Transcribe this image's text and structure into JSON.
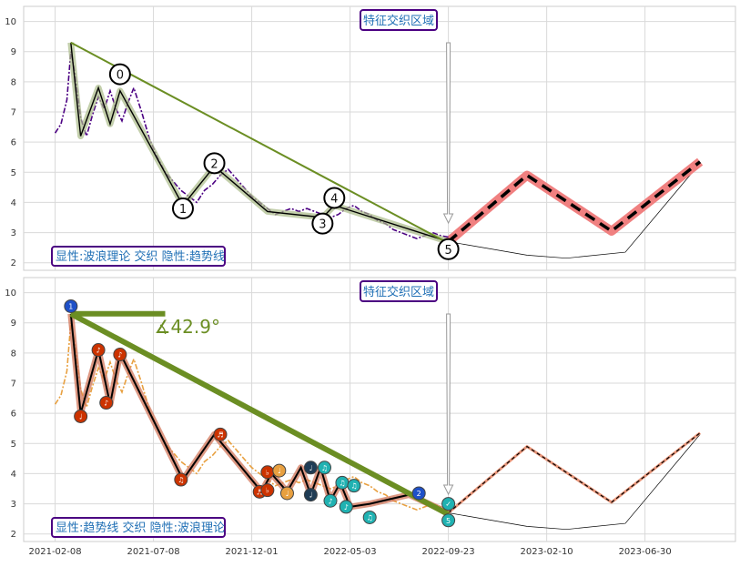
{
  "chart_data": [
    {
      "type": "line",
      "panel": "top",
      "ylim": [
        1.75,
        10.5
      ],
      "yticks": [
        "2",
        "3",
        "4",
        "5",
        "6",
        "7",
        "8",
        "9",
        "10"
      ],
      "grid": true,
      "annotation_top": "特征交织区域",
      "legend_text": "显性:波浪理论 交织 隐性:趋势线",
      "price_color": "#4b0082",
      "price_series": [
        [
          0,
          6.3
        ],
        [
          3,
          6.6
        ],
        [
          6,
          7.4
        ],
        [
          8,
          9.0
        ],
        [
          10,
          8.3
        ],
        [
          13,
          6.8
        ],
        [
          16,
          6.2
        ],
        [
          19,
          6.9
        ],
        [
          22,
          7.5
        ],
        [
          25,
          7.1
        ],
        [
          28,
          7.7
        ],
        [
          31,
          7.1
        ],
        [
          34,
          6.7
        ],
        [
          37,
          7.3
        ],
        [
          40,
          7.8
        ],
        [
          44,
          7.0
        ],
        [
          48,
          6.1
        ],
        [
          52,
          5.5
        ],
        [
          56,
          5.0
        ],
        [
          60,
          4.7
        ],
        [
          64,
          4.4
        ],
        [
          68,
          4.2
        ],
        [
          72,
          4.0
        ],
        [
          76,
          4.4
        ],
        [
          80,
          4.6
        ],
        [
          84,
          4.9
        ],
        [
          88,
          5.1
        ],
        [
          92,
          4.8
        ],
        [
          96,
          4.5
        ],
        [
          100,
          4.2
        ],
        [
          104,
          4.0
        ],
        [
          108,
          3.8
        ],
        [
          112,
          3.6
        ],
        [
          116,
          3.7
        ],
        [
          120,
          3.8
        ],
        [
          124,
          3.7
        ],
        [
          128,
          3.8
        ],
        [
          132,
          3.7
        ],
        [
          136,
          3.6
        ],
        [
          140,
          3.5
        ],
        [
          144,
          3.6
        ],
        [
          148,
          3.8
        ],
        [
          152,
          3.9
        ],
        [
          156,
          3.7
        ],
        [
          160,
          3.6
        ],
        [
          164,
          3.4
        ],
        [
          168,
          3.3
        ],
        [
          172,
          3.1
        ],
        [
          176,
          3.0
        ],
        [
          180,
          2.9
        ],
        [
          184,
          2.8
        ],
        [
          188,
          2.9
        ],
        [
          192,
          3.0
        ],
        [
          196,
          2.9
        ],
        [
          200,
          2.85
        ]
      ],
      "wave_points": [
        [
          8,
          9.3
        ],
        [
          13,
          6.2
        ],
        [
          22,
          7.8
        ],
        [
          28,
          6.6
        ],
        [
          33,
          7.7
        ],
        [
          65,
          3.9
        ],
        [
          81,
          5.2
        ],
        [
          108,
          3.7
        ],
        [
          136,
          3.5
        ],
        [
          142,
          3.9
        ],
        [
          200,
          2.7
        ]
      ],
      "wave_labels": [
        {
          "text": "0",
          "x": 33,
          "y": 8.25
        },
        {
          "text": "1",
          "x": 65,
          "y": 3.8
        },
        {
          "text": "2",
          "x": 81,
          "y": 5.3
        },
        {
          "text": "3",
          "x": 136,
          "y": 3.3
        },
        {
          "text": "4",
          "x": 142,
          "y": 4.15
        },
        {
          "text": "5",
          "x": 200,
          "y": 2.45
        }
      ],
      "trend_line": [
        [
          8,
          9.3
        ],
        [
          200,
          2.65
        ]
      ],
      "projection": [
        [
          200,
          2.7
        ],
        [
          240,
          4.9
        ],
        [
          283,
          3.05
        ],
        [
          328,
          5.35
        ]
      ],
      "projection_curve": [
        [
          200,
          2.7
        ],
        [
          240,
          2.25
        ],
        [
          260,
          2.15
        ],
        [
          290,
          2.35
        ],
        [
          328,
          5.3
        ]
      ]
    },
    {
      "type": "line",
      "panel": "bottom",
      "ylim": [
        1.75,
        10.5
      ],
      "yticks": [
        "2",
        "3",
        "4",
        "5",
        "6",
        "7",
        "8",
        "9",
        "10"
      ],
      "grid": true,
      "annotation_top": "特征交织区域",
      "legend_text": "显性:趋势线 交织 隐性:波浪理论",
      "angle_label": "∡42.9°",
      "price_color": "#e8a040",
      "price_series": [
        [
          0,
          6.3
        ],
        [
          3,
          6.6
        ],
        [
          6,
          7.4
        ],
        [
          8,
          9.0
        ],
        [
          10,
          8.3
        ],
        [
          13,
          6.8
        ],
        [
          16,
          6.2
        ],
        [
          19,
          6.9
        ],
        [
          22,
          7.5
        ],
        [
          25,
          7.1
        ],
        [
          28,
          7.7
        ],
        [
          31,
          7.1
        ],
        [
          34,
          6.7
        ],
        [
          37,
          7.3
        ],
        [
          40,
          7.8
        ],
        [
          44,
          7.0
        ],
        [
          48,
          6.1
        ],
        [
          52,
          5.5
        ],
        [
          56,
          5.0
        ],
        [
          60,
          4.7
        ],
        [
          64,
          4.4
        ],
        [
          68,
          4.2
        ],
        [
          72,
          4.0
        ],
        [
          76,
          4.4
        ],
        [
          80,
          4.6
        ],
        [
          84,
          4.9
        ],
        [
          88,
          5.1
        ],
        [
          92,
          4.8
        ],
        [
          96,
          4.5
        ],
        [
          100,
          4.2
        ],
        [
          104,
          4.0
        ],
        [
          108,
          3.8
        ],
        [
          112,
          3.6
        ],
        [
          116,
          3.7
        ],
        [
          120,
          3.8
        ],
        [
          124,
          3.7
        ],
        [
          128,
          3.8
        ],
        [
          132,
          3.7
        ],
        [
          136,
          3.6
        ],
        [
          140,
          3.5
        ],
        [
          144,
          3.6
        ],
        [
          148,
          3.8
        ],
        [
          152,
          3.9
        ],
        [
          156,
          3.7
        ],
        [
          160,
          3.6
        ],
        [
          164,
          3.4
        ],
        [
          168,
          3.3
        ],
        [
          172,
          3.1
        ],
        [
          176,
          3.0
        ],
        [
          180,
          2.9
        ],
        [
          184,
          2.8
        ],
        [
          188,
          2.9
        ],
        [
          192,
          3.0
        ],
        [
          196,
          2.9
        ],
        [
          200,
          2.85
        ]
      ],
      "wave_points": [
        [
          8,
          9.3
        ],
        [
          13,
          6.0
        ],
        [
          22,
          8.1
        ],
        [
          28,
          6.3
        ],
        [
          33,
          8.0
        ],
        [
          65,
          3.8
        ],
        [
          81,
          5.3
        ],
        [
          105,
          3.4
        ],
        [
          110,
          4.0
        ],
        [
          118,
          3.4
        ],
        [
          125,
          4.2
        ],
        [
          130,
          3.3
        ],
        [
          135,
          4.2
        ],
        [
          140,
          3.1
        ],
        [
          145,
          3.7
        ],
        [
          150,
          2.9
        ],
        [
          160,
          3.0
        ],
        [
          180,
          3.3
        ],
        [
          200,
          2.7
        ]
      ],
      "markers": [
        {
          "x": 8,
          "y": 9.55,
          "c": "#1e50c8",
          "t": "1"
        },
        {
          "x": 13,
          "y": 5.9,
          "c": "#cc3300",
          "t": "♩"
        },
        {
          "x": 22,
          "y": 8.1,
          "c": "#cc3300",
          "t": "♪"
        },
        {
          "x": 26,
          "y": 6.35,
          "c": "#cc3300",
          "t": "♪"
        },
        {
          "x": 33,
          "y": 7.95,
          "c": "#cc3300",
          "t": "♪"
        },
        {
          "x": 64,
          "y": 3.8,
          "c": "#cc3300",
          "t": "♫"
        },
        {
          "x": 84,
          "y": 5.3,
          "c": "#cc3300",
          "t": "♬"
        },
        {
          "x": 104,
          "y": 3.4,
          "c": "#cc3300",
          "t": "♬"
        },
        {
          "x": 108,
          "y": 4.05,
          "c": "#cc3300",
          "t": "♭"
        },
        {
          "x": 108,
          "y": 3.45,
          "c": "#cc3300",
          "t": "♭"
        },
        {
          "x": 114,
          "y": 4.1,
          "c": "#e8a040",
          "t": "♩"
        },
        {
          "x": 118,
          "y": 3.35,
          "c": "#e8a040",
          "t": "♩"
        },
        {
          "x": 130,
          "y": 4.2,
          "c": "#1f3c55",
          "t": "♩"
        },
        {
          "x": 130,
          "y": 3.3,
          "c": "#1f3c55",
          "t": "♩"
        },
        {
          "x": 137,
          "y": 4.2,
          "c": "#20b2b2",
          "t": "♫"
        },
        {
          "x": 140,
          "y": 3.1,
          "c": "#20b2b2",
          "t": "♪"
        },
        {
          "x": 146,
          "y": 3.7,
          "c": "#20b2b2",
          "t": "♫"
        },
        {
          "x": 148,
          "y": 2.9,
          "c": "#20b2b2",
          "t": "♪"
        },
        {
          "x": 152,
          "y": 3.6,
          "c": "#20b2b2",
          "t": "♫"
        },
        {
          "x": 160,
          "y": 2.55,
          "c": "#20b2b2",
          "t": "♫"
        },
        {
          "x": 185,
          "y": 3.35,
          "c": "#1e50c8",
          "t": "2"
        },
        {
          "x": 200,
          "y": 3.0,
          "c": "#20b2b2",
          "t": "✓"
        },
        {
          "x": 200,
          "y": 2.45,
          "c": "#20b2b2",
          "t": "5"
        }
      ],
      "trend_line": [
        [
          8,
          9.3
        ],
        [
          200,
          2.65
        ]
      ],
      "angle_line": [
        [
          8,
          9.3
        ],
        [
          56,
          9.3
        ]
      ],
      "projection": [
        [
          200,
          2.7
        ],
        [
          240,
          4.9
        ],
        [
          283,
          3.05
        ],
        [
          328,
          5.35
        ]
      ],
      "projection_curve": [
        [
          200,
          2.7
        ],
        [
          240,
          2.25
        ],
        [
          260,
          2.15
        ],
        [
          290,
          2.35
        ],
        [
          328,
          5.3
        ]
      ]
    }
  ],
  "xaxis": {
    "ticks": [
      "2021-02-08",
      "2021-07-08",
      "2021-12-01",
      "2022-05-03",
      "2022-09-23",
      "2023-02-10",
      "2023-06-30"
    ],
    "tick_positions": [
      0,
      50,
      100,
      150,
      200,
      250,
      300
    ],
    "range": [
      -16,
      346
    ]
  }
}
